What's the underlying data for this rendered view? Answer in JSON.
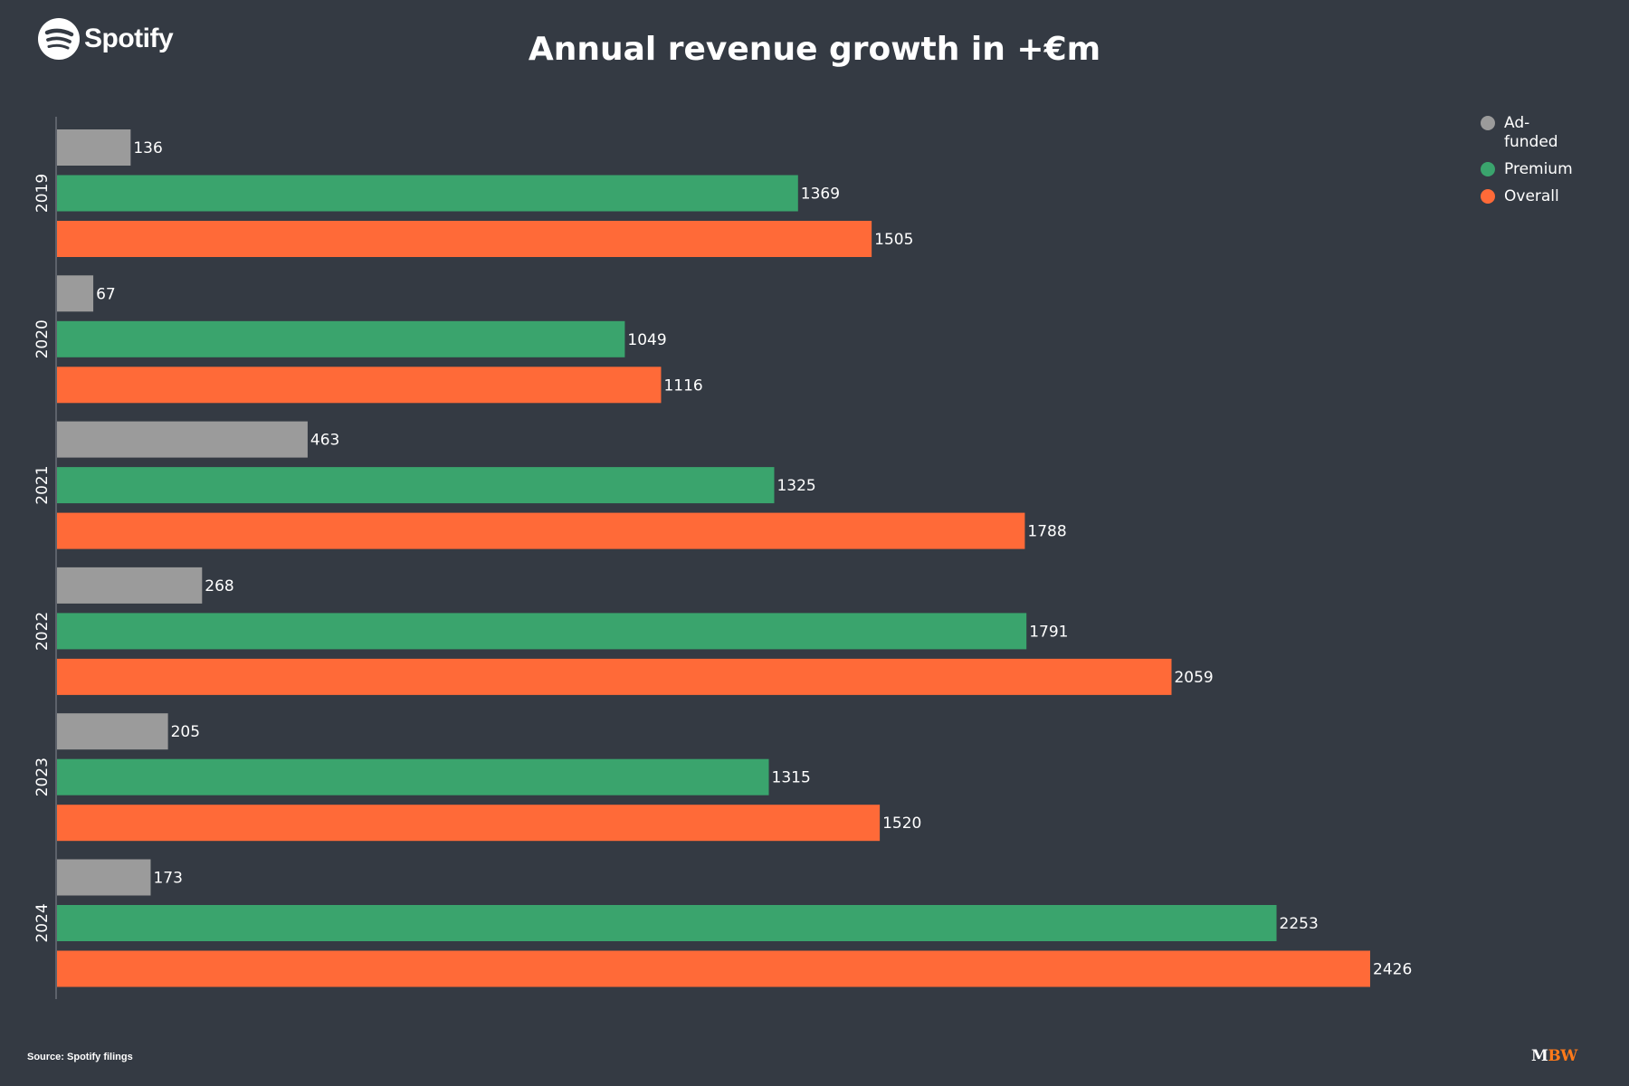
{
  "brand": {
    "name": "Spotify",
    "logo_icon": "spotify-logo-icon"
  },
  "footer": {
    "source": "Source: Spotify filings",
    "publisher_m": "M",
    "publisher_bw": "BW"
  },
  "colors": {
    "background": "#343a43",
    "ad_funded": "#9b9b9b",
    "premium": "#3aa46d",
    "overall": "#ff6a38",
    "axis": "#6b7079"
  },
  "chart_data": {
    "type": "bar",
    "orientation": "horizontal",
    "title": "Annual revenue growth in +€m",
    "xlabel": "",
    "ylabel": "",
    "categories": [
      "2019",
      "2020",
      "2021",
      "2022",
      "2023",
      "2024"
    ],
    "series": [
      {
        "name": "Ad-funded",
        "color": "#9b9b9b",
        "values": [
          136,
          67,
          463,
          268,
          205,
          173
        ]
      },
      {
        "name": "Premium",
        "color": "#3aa46d",
        "values": [
          1369,
          1049,
          1325,
          1791,
          1315,
          2253
        ]
      },
      {
        "name": "Overall",
        "color": "#ff6a38",
        "values": [
          1505,
          1116,
          1788,
          2059,
          1520,
          2426
        ]
      }
    ],
    "xlim": [
      0,
      2426
    ],
    "grid": false,
    "data_labels": true,
    "legend_position": "top-right"
  }
}
